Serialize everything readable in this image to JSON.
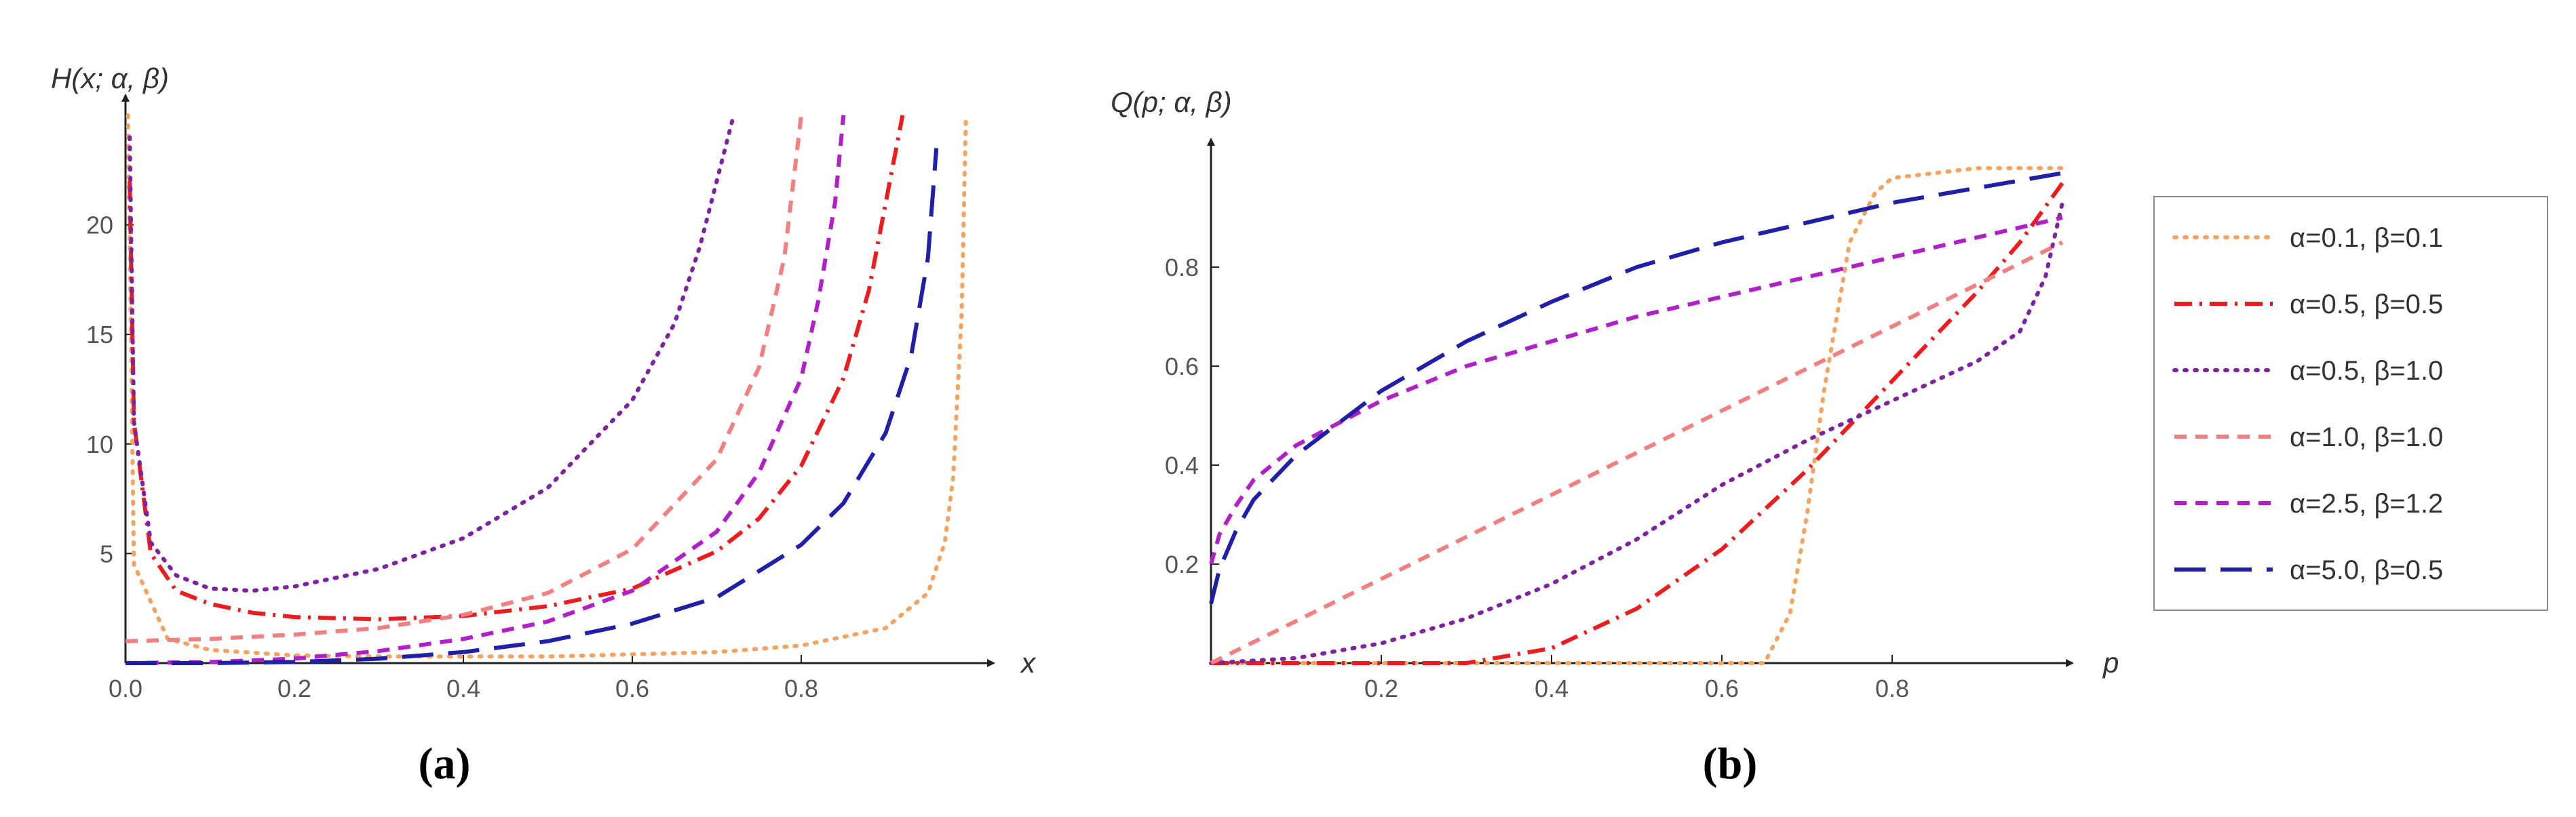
{
  "chart_data": [
    {
      "type": "line",
      "panel": "a",
      "caption": "(a)",
      "xlabel": "x",
      "ylabel": "H(x; α, β)",
      "xlim": [
        0,
        1
      ],
      "ylim": [
        0,
        25
      ],
      "xticks": [
        "0.0",
        "0.2",
        "0.4",
        "0.6",
        "0.8"
      ],
      "xtick_values": [
        0,
        0.2,
        0.4,
        0.6,
        0.8
      ],
      "yticks": [
        "5",
        "10",
        "15",
        "20"
      ],
      "ytick_values": [
        5,
        10,
        15,
        20
      ],
      "grid": false,
      "series": [
        {
          "name": "α=0.1, β=0.1",
          "x": [
            0.003,
            0.01,
            0.05,
            0.1,
            0.2,
            0.3,
            0.4,
            0.5,
            0.6,
            0.7,
            0.8,
            0.9,
            0.95,
            0.97,
            0.98,
            0.99,
            0.995
          ],
          "y": [
            25,
            4.5,
            1.1,
            0.6,
            0.35,
            0.3,
            0.3,
            0.3,
            0.4,
            0.5,
            0.8,
            1.6,
            3.2,
            5.5,
            8.5,
            16,
            25
          ]
        },
        {
          "name": "α=0.5, β=0.5",
          "x": [
            0.005,
            0.01,
            0.03,
            0.06,
            0.1,
            0.15,
            0.2,
            0.3,
            0.4,
            0.5,
            0.6,
            0.7,
            0.75,
            0.8,
            0.85,
            0.88,
            0.9,
            0.92
          ],
          "y": [
            22,
            11,
            5.0,
            3.3,
            2.7,
            2.3,
            2.1,
            2.0,
            2.15,
            2.6,
            3.4,
            5.1,
            6.6,
            9.0,
            13,
            17,
            21,
            25
          ]
        },
        {
          "name": "α=0.5, β=1.0",
          "x": [
            0.005,
            0.01,
            0.03,
            0.06,
            0.1,
            0.15,
            0.2,
            0.3,
            0.4,
            0.5,
            0.6,
            0.65,
            0.68,
            0.7,
            0.72
          ],
          "y": [
            24,
            11,
            5.5,
            4.0,
            3.4,
            3.3,
            3.5,
            4.3,
            5.7,
            8.0,
            12,
            15.5,
            19,
            22,
            25
          ]
        },
        {
          "name": "α=1.0, β=1.0",
          "x": [
            0.0,
            0.1,
            0.2,
            0.3,
            0.4,
            0.5,
            0.6,
            0.7,
            0.75,
            0.78,
            0.8
          ],
          "y": [
            1.0,
            1.1,
            1.3,
            1.6,
            2.2,
            3.2,
            5.2,
            9.3,
            13.5,
            18.5,
            25
          ]
        },
        {
          "name": "α=2.5, β=1.2",
          "x": [
            0.0,
            0.1,
            0.2,
            0.3,
            0.4,
            0.5,
            0.6,
            0.7,
            0.75,
            0.8,
            0.82,
            0.84,
            0.85
          ],
          "y": [
            0.0,
            0.05,
            0.2,
            0.55,
            1.1,
            1.9,
            3.3,
            6.0,
            8.7,
            13,
            16.5,
            21,
            25
          ]
        },
        {
          "name": "α=5.0, β=0.5",
          "x": [
            0.0,
            0.1,
            0.2,
            0.3,
            0.4,
            0.5,
            0.6,
            0.7,
            0.8,
            0.85,
            0.9,
            0.93,
            0.95,
            0.96
          ],
          "y": [
            0.0,
            0.0,
            0.05,
            0.2,
            0.5,
            1.0,
            1.8,
            3.0,
            5.4,
            7.3,
            10.5,
            14,
            18.5,
            23.5
          ]
        }
      ]
    },
    {
      "type": "line",
      "panel": "b",
      "caption": "(b)",
      "xlabel": "p",
      "ylabel": "Q(p; α, β)",
      "xlim": [
        0,
        1
      ],
      "ylim": [
        0,
        1
      ],
      "xticks": [
        "0.2",
        "0.4",
        "0.6",
        "0.8"
      ],
      "xtick_values": [
        0.2,
        0.4,
        0.6,
        0.8
      ],
      "yticks": [
        "0.2",
        "0.4",
        "0.6",
        "0.8"
      ],
      "ytick_values": [
        0.2,
        0.4,
        0.6,
        0.8
      ],
      "grid": false,
      "series": [
        {
          "name": "α=0.1, β=0.1",
          "x": [
            0.0,
            0.6,
            0.65,
            0.68,
            0.7,
            0.72,
            0.75,
            0.78,
            0.8,
            0.85,
            0.9,
            0.95,
            1.0
          ],
          "y": [
            0.0,
            0.0,
            0.0,
            0.1,
            0.3,
            0.55,
            0.85,
            0.95,
            0.98,
            0.99,
            1.0,
            1.0,
            1.0
          ]
        },
        {
          "name": "α=0.5, β=0.5",
          "x": [
            0.0,
            0.2,
            0.3,
            0.4,
            0.5,
            0.6,
            0.7,
            0.8,
            0.9,
            0.95,
            1.0
          ],
          "y": [
            0.0,
            0.0,
            0.0,
            0.03,
            0.11,
            0.23,
            0.39,
            0.57,
            0.75,
            0.85,
            0.97
          ]
        },
        {
          "name": "α=0.5, β=1.0",
          "x": [
            0.0,
            0.1,
            0.2,
            0.3,
            0.4,
            0.5,
            0.6,
            0.7,
            0.8,
            0.9,
            0.95,
            0.98,
            1.0
          ],
          "y": [
            0.0,
            0.01,
            0.04,
            0.09,
            0.16,
            0.25,
            0.36,
            0.45,
            0.53,
            0.61,
            0.67,
            0.78,
            0.93
          ]
        },
        {
          "name": "α=1.0, β=1.0",
          "x": [
            0.0,
            1.0
          ],
          "y": [
            0.0,
            0.85
          ]
        },
        {
          "name": "α=2.5, β=1.2",
          "x": [
            0.0,
            0.01,
            0.03,
            0.05,
            0.1,
            0.2,
            0.3,
            0.4,
            0.5,
            0.6,
            0.7,
            0.8,
            0.9,
            1.0
          ],
          "y": [
            0.2,
            0.26,
            0.32,
            0.37,
            0.44,
            0.53,
            0.6,
            0.65,
            0.7,
            0.74,
            0.78,
            0.82,
            0.86,
            0.9
          ]
        },
        {
          "name": "α=5.0, β=0.5",
          "x": [
            0.0,
            0.01,
            0.03,
            0.05,
            0.1,
            0.2,
            0.3,
            0.4,
            0.5,
            0.6,
            0.7,
            0.8,
            0.9,
            1.0
          ],
          "y": [
            0.12,
            0.19,
            0.27,
            0.33,
            0.42,
            0.55,
            0.65,
            0.73,
            0.8,
            0.85,
            0.89,
            0.93,
            0.96,
            0.99
          ]
        }
      ]
    }
  ],
  "legend": {
    "placement": "right",
    "entries": [
      {
        "label": "α=0.1, β=0.1",
        "color": "#f4a460",
        "dash": "dotted"
      },
      {
        "label": "α=0.5, β=0.5",
        "color": "#ee1c1c",
        "dash": "dash-dot"
      },
      {
        "label": "α=0.5, β=1.0",
        "color": "#7d22a0",
        "dash": "dotted"
      },
      {
        "label": "α=1.0, β=1.0",
        "color": "#f28080",
        "dash": "dashed"
      },
      {
        "label": "α=2.5, β=1.2",
        "color": "#b01fc8",
        "dash": "dashed"
      },
      {
        "label": "α=5.0, β=0.5",
        "color": "#1f1fa8",
        "dash": "long-dashed"
      }
    ]
  }
}
